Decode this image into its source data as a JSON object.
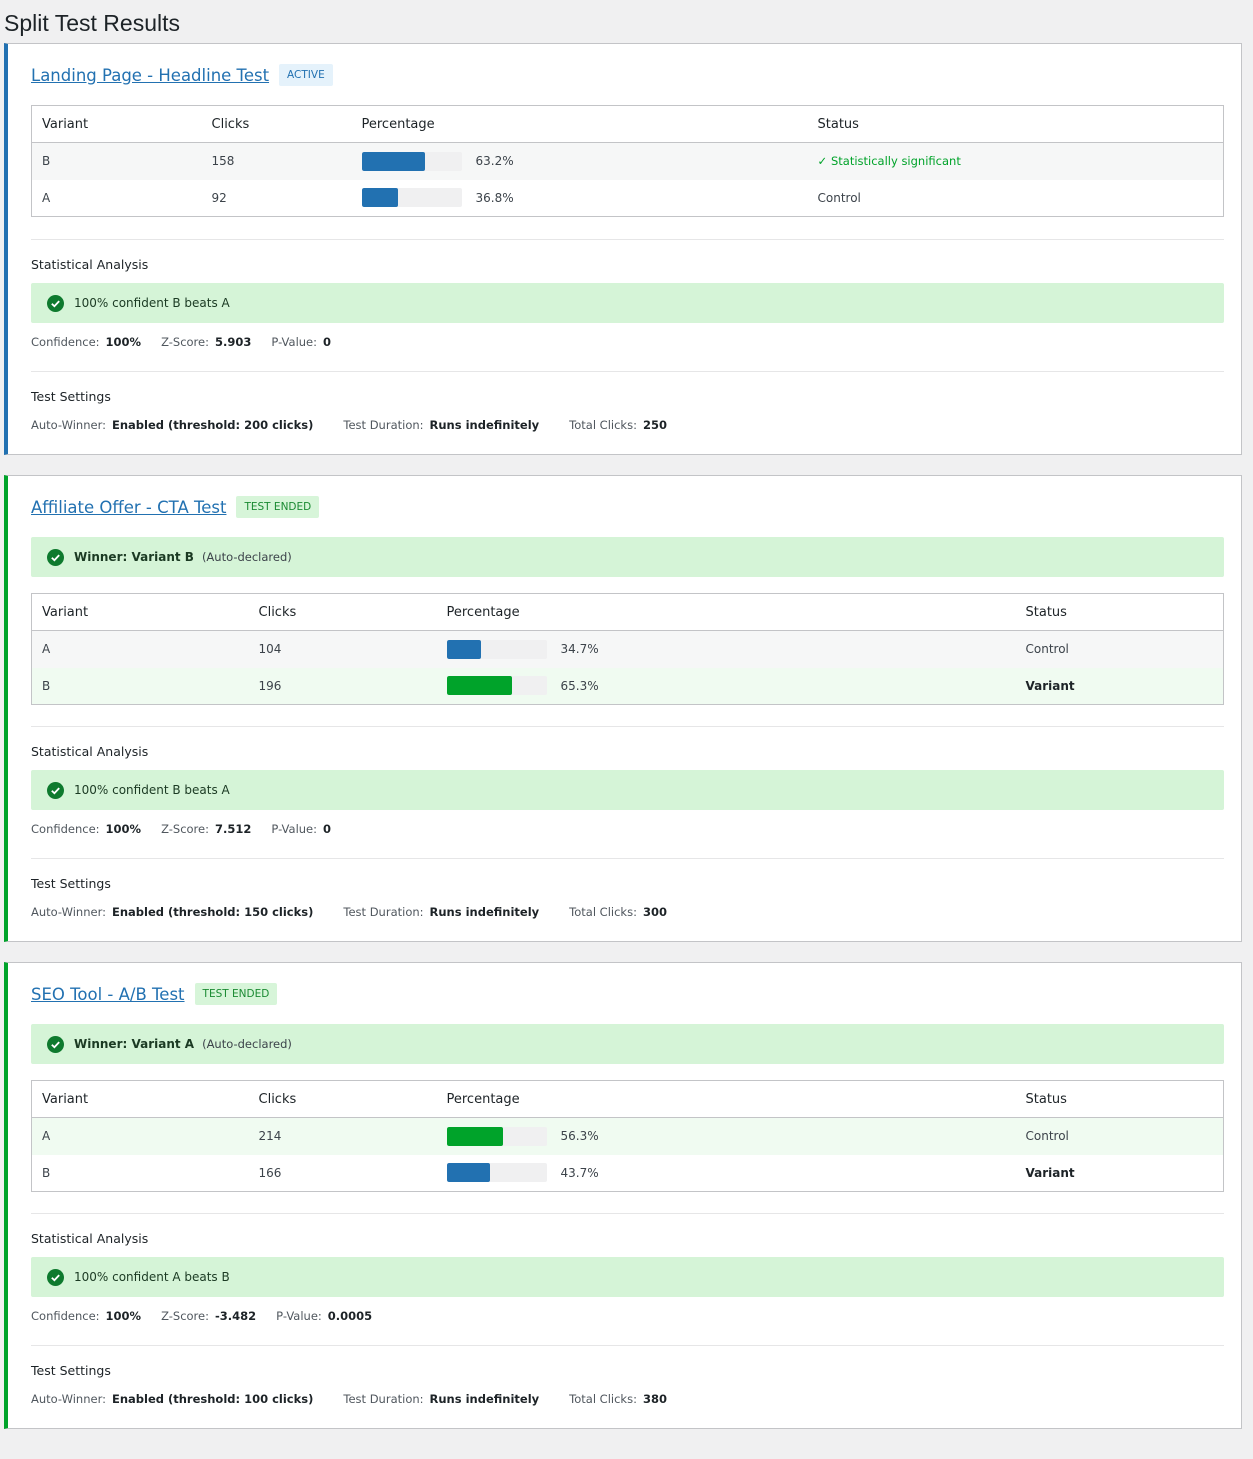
{
  "page": {
    "title": "Split Test Results"
  },
  "labels": {
    "variant": "Variant",
    "clicks": "Clicks",
    "percentage": "Percentage",
    "status": "Status",
    "statistical_analysis": "Statistical Analysis",
    "test_settings": "Test Settings",
    "confidence": "Confidence:",
    "z_score": "Z-Score:",
    "p_value": "P-Value:",
    "auto_winner": "Auto-Winner:",
    "test_duration": "Test Duration:",
    "total_clicks": "Total Clicks:"
  },
  "tests": [
    {
      "title": "Landing Page - Headline Test",
      "badge": "ACTIVE",
      "rows": [
        {
          "variant": "B",
          "clicks": "158",
          "percent_text": "63.2%",
          "percent": 63.2,
          "status": "Statistically significant",
          "status_check": "✓"
        },
        {
          "variant": "A",
          "clicks": "92",
          "percent_text": "36.8%",
          "percent": 36.8,
          "status": "Control"
        }
      ],
      "analysis": {
        "message": "100% confident B beats A",
        "confidence": "100%",
        "z_score": "5.903",
        "p_value": "0"
      },
      "settings": {
        "auto_winner": "Enabled (threshold: 200 clicks)",
        "duration": "Runs indefinitely",
        "total_clicks": "250"
      }
    },
    {
      "title": "Affiliate Offer - CTA Test",
      "badge": "TEST ENDED",
      "winner": {
        "text": "Winner: Variant B",
        "note": "(Auto-declared)"
      },
      "rows": [
        {
          "variant": "A",
          "clicks": "104",
          "percent_text": "34.7%",
          "percent": 34.7,
          "status": "Control"
        },
        {
          "variant": "B",
          "clicks": "196",
          "percent_text": "65.3%",
          "percent": 65.3,
          "status": "Variant"
        }
      ],
      "analysis": {
        "message": "100% confident B beats A",
        "confidence": "100%",
        "z_score": "7.512",
        "p_value": "0"
      },
      "settings": {
        "auto_winner": "Enabled (threshold: 150 clicks)",
        "duration": "Runs indefinitely",
        "total_clicks": "300"
      }
    },
    {
      "title": "SEO Tool - A/B Test",
      "badge": "TEST ENDED",
      "winner": {
        "text": "Winner: Variant A",
        "note": "(Auto-declared)"
      },
      "rows": [
        {
          "variant": "A",
          "clicks": "214",
          "percent_text": "56.3%",
          "percent": 56.3,
          "status": "Control"
        },
        {
          "variant": "B",
          "clicks": "166",
          "percent_text": "43.7%",
          "percent": 43.7,
          "status": "Variant"
        }
      ],
      "analysis": {
        "message": "100% confident A beats B",
        "confidence": "100%",
        "z_score": "-3.482",
        "p_value": "0.0005"
      },
      "settings": {
        "auto_winner": "Enabled (threshold: 100 clicks)",
        "duration": "Runs indefinitely",
        "total_clicks": "380"
      }
    }
  ]
}
